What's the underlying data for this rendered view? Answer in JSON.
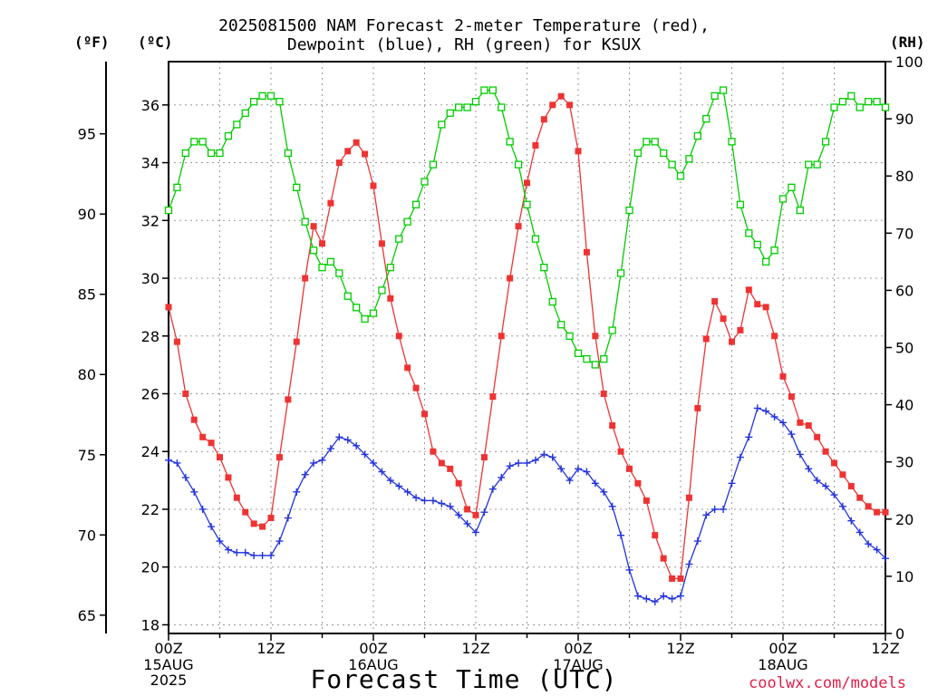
{
  "title_line1": "2025081500 NAM Forecast 2-meter Temperature (red),",
  "title_line2": "Dewpoint (blue), RH (green) for KSUX",
  "units": {
    "fahrenheit": "(ºF)",
    "celsius": "(ºC)",
    "rh": "(RH)"
  },
  "credit": "coolwx.com/models",
  "colors": {
    "temperature": "#ee3333",
    "dewpoint": "#2233dd",
    "rh": "#00cc00",
    "grid": "#999999"
  },
  "chart_data": {
    "type": "line",
    "title": "2025081500 NAM Forecast 2-meter Temperature (red), Dewpoint (blue), RH (green) for KSUX",
    "xlabel": "Forecast Time (UTC)",
    "x_range_hours": [
      0,
      84
    ],
    "x_ticks": [
      {
        "hour": 0,
        "label": "00Z",
        "sub": [
          "15AUG",
          "2025"
        ]
      },
      {
        "hour": 12,
        "label": "12Z",
        "sub": []
      },
      {
        "hour": 24,
        "label": "00Z",
        "sub": [
          "16AUG"
        ]
      },
      {
        "hour": 36,
        "label": "12Z",
        "sub": []
      },
      {
        "hour": 48,
        "label": "00Z",
        "sub": [
          "17AUG"
        ]
      },
      {
        "hour": 60,
        "label": "12Z",
        "sub": []
      },
      {
        "hour": 72,
        "label": "00Z",
        "sub": [
          "18AUG"
        ]
      },
      {
        "hour": 84,
        "label": "12Z",
        "sub": []
      }
    ],
    "y_left_celsius": {
      "range": [
        17.7,
        37.5
      ],
      "ticks": [
        18,
        20,
        22,
        24,
        26,
        28,
        30,
        32,
        34,
        36
      ]
    },
    "y_far_left_fahrenheit": {
      "ticks": [
        65,
        70,
        75,
        80,
        85,
        90,
        95
      ]
    },
    "y_right_rh": {
      "range": [
        0,
        100
      ],
      "ticks": [
        0,
        10,
        20,
        30,
        40,
        50,
        60,
        70,
        80,
        90,
        100
      ]
    },
    "hours": [
      0,
      1,
      2,
      3,
      4,
      5,
      6,
      7,
      8,
      9,
      10,
      11,
      12,
      13,
      14,
      15,
      16,
      17,
      18,
      19,
      20,
      21,
      22,
      23,
      24,
      25,
      26,
      27,
      28,
      29,
      30,
      31,
      32,
      33,
      34,
      35,
      36,
      37,
      38,
      39,
      40,
      41,
      42,
      43,
      44,
      45,
      46,
      47,
      48,
      49,
      50,
      51,
      52,
      53,
      54,
      55,
      56,
      57,
      58,
      59,
      60,
      61,
      62,
      63,
      64,
      65,
      66,
      67,
      68,
      69,
      70,
      71,
      72,
      73,
      74,
      75,
      76,
      77,
      78,
      79,
      80,
      81,
      82,
      83,
      84
    ],
    "series": [
      {
        "name": "Temperature",
        "unit": "C",
        "values": [
          29.0,
          27.8,
          26.0,
          25.1,
          24.5,
          24.3,
          23.8,
          23.1,
          22.4,
          21.9,
          21.5,
          21.4,
          21.7,
          23.8,
          25.8,
          27.8,
          30.0,
          31.8,
          31.2,
          32.6,
          34.0,
          34.4,
          34.7,
          34.3,
          33.2,
          31.2,
          29.3,
          28.0,
          26.9,
          26.2,
          25.3,
          24.0,
          23.6,
          23.4,
          22.9,
          22.0,
          21.8,
          23.8,
          25.9,
          28.0,
          30.0,
          31.8,
          33.3,
          34.6,
          35.5,
          36.0,
          36.3,
          36.0,
          34.4,
          30.9,
          28.0,
          26.0,
          24.9,
          24.0,
          23.4,
          22.9,
          22.3,
          21.1,
          20.3,
          19.6,
          19.6,
          22.4,
          25.5,
          27.9,
          29.2,
          28.6,
          27.8,
          28.2,
          29.6,
          29.1,
          29.0,
          28.0,
          26.6,
          25.9,
          25.0,
          24.9,
          24.5,
          24.0,
          23.6,
          23.2,
          22.8,
          22.4,
          22.1,
          21.9,
          21.9
        ]
      },
      {
        "name": "Dewpoint",
        "unit": "C",
        "values": [
          23.7,
          23.6,
          23.1,
          22.6,
          22.0,
          21.4,
          20.9,
          20.6,
          20.5,
          20.5,
          20.4,
          20.4,
          20.4,
          20.9,
          21.7,
          22.6,
          23.2,
          23.6,
          23.7,
          24.1,
          24.5,
          24.4,
          24.2,
          23.9,
          23.6,
          23.3,
          23.0,
          22.8,
          22.6,
          22.4,
          22.3,
          22.3,
          22.2,
          22.1,
          21.8,
          21.5,
          21.2,
          21.9,
          22.7,
          23.1,
          23.5,
          23.6,
          23.6,
          23.7,
          23.9,
          23.8,
          23.4,
          23.0,
          23.4,
          23.3,
          22.9,
          22.6,
          22.1,
          21.1,
          19.9,
          19.0,
          18.9,
          18.8,
          19.0,
          18.9,
          19.0,
          20.1,
          20.9,
          21.8,
          22.0,
          22.0,
          22.9,
          23.8,
          24.5,
          25.5,
          25.4,
          25.2,
          25.0,
          24.6,
          23.9,
          23.4,
          23.0,
          22.8,
          22.5,
          22.1,
          21.6,
          21.2,
          20.8,
          20.6,
          20.3
        ]
      },
      {
        "name": "RH",
        "unit": "%",
        "values": [
          74,
          78,
          84,
          86,
          86,
          84,
          84,
          87,
          89,
          91,
          93,
          94,
          94,
          93,
          84,
          78,
          72,
          67,
          64,
          65,
          63,
          59,
          57,
          55,
          56,
          60,
          64,
          69,
          72,
          75,
          79,
          82,
          89,
          91,
          92,
          92,
          93,
          95,
          95,
          92,
          86,
          82,
          75,
          69,
          64,
          58,
          54,
          52,
          49,
          48,
          47,
          48,
          53,
          63,
          74,
          84,
          86,
          86,
          84,
          82,
          80,
          83,
          87,
          90,
          94,
          95,
          86,
          75,
          70,
          68,
          65,
          67,
          76,
          78,
          74,
          82,
          82,
          86,
          92,
          93,
          94,
          92,
          93,
          93,
          92
        ]
      }
    ]
  }
}
